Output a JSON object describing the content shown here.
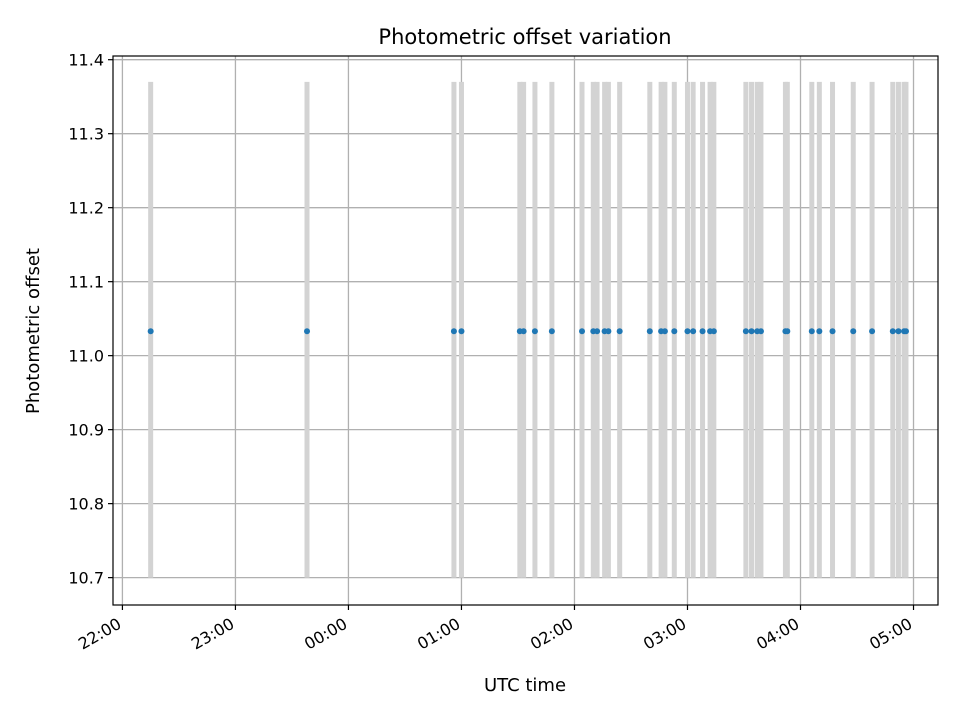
{
  "chart_data": {
    "type": "scatter",
    "title": "Photometric offset variation",
    "xlabel": "UTC time",
    "ylabel": "Photometric offset",
    "x_ticks": [
      "22:00",
      "23:00",
      "00:00",
      "01:00",
      "02:00",
      "03:00",
      "04:00",
      "05:00"
    ],
    "y_ticks": [
      "10.7",
      "10.8",
      "10.9",
      "11.0",
      "11.1",
      "11.2",
      "11.3",
      "11.4"
    ],
    "xlim": [
      "21:55",
      "05:13"
    ],
    "ylim": [
      10.663,
      11.405
    ],
    "grid": true,
    "errorbar_color": "#d3d3d3",
    "marker_color": "#1f77b4",
    "errorbar_low": 10.7,
    "errorbar_high": 11.37,
    "series": [
      {
        "x": [
          "22:15",
          "23:38",
          "00:56",
          "01:00",
          "01:31",
          "01:33",
          "01:39",
          "01:48",
          "02:04",
          "02:10",
          "02:12",
          "02:16",
          "02:18",
          "02:24",
          "02:40",
          "02:46",
          "02:48",
          "02:53",
          "03:00",
          "03:03",
          "03:08",
          "03:12",
          "03:14",
          "03:31",
          "03:34",
          "03:37",
          "03:39",
          "03:52",
          "03:53",
          "04:06",
          "04:10",
          "04:17",
          "04:28",
          "04:38",
          "04:49",
          "04:52",
          "04:55",
          "04:56"
        ],
        "y": [
          11.033,
          11.033,
          11.033,
          11.033,
          11.033,
          11.033,
          11.033,
          11.033,
          11.033,
          11.033,
          11.033,
          11.033,
          11.033,
          11.033,
          11.033,
          11.033,
          11.033,
          11.033,
          11.033,
          11.033,
          11.033,
          11.033,
          11.033,
          11.033,
          11.033,
          11.033,
          11.033,
          11.033,
          11.033,
          11.033,
          11.033,
          11.033,
          11.033,
          11.033,
          11.033,
          11.033,
          11.033,
          11.033
        ]
      }
    ]
  }
}
